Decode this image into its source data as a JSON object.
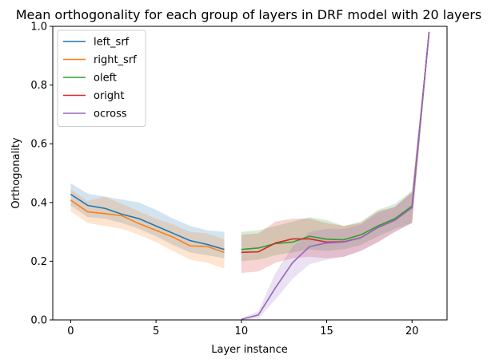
{
  "chart_data": {
    "type": "line",
    "title": "Mean orthogonality for each group of layers in DRF model with 20 layers",
    "xlabel": "Layer instance",
    "ylabel": "Orthogonality",
    "xlim": [
      -1.05,
      22.05
    ],
    "ylim": [
      0.0,
      1.0
    ],
    "xticks": [
      0,
      5,
      10,
      15,
      20
    ],
    "yticks": [
      0.0,
      0.2,
      0.4,
      0.6,
      0.8,
      1.0
    ],
    "xtick_labels": [
      "0",
      "5",
      "10",
      "15",
      "20"
    ],
    "ytick_labels": [
      "0.0",
      "0.2",
      "0.4",
      "0.6",
      "0.8",
      "1.0"
    ],
    "legend_position": "upper-left",
    "grid": false,
    "series": [
      {
        "name": "left_srf",
        "color": "#1f77b4",
        "x": [
          0,
          1,
          2,
          3,
          4,
          5,
          6,
          7,
          8,
          9
        ],
        "y": [
          0.428,
          0.39,
          0.38,
          0.36,
          0.345,
          0.32,
          0.295,
          0.27,
          0.257,
          0.24
        ],
        "lower": [
          0.39,
          0.35,
          0.345,
          0.33,
          0.31,
          0.285,
          0.255,
          0.23,
          0.22,
          0.21
        ],
        "upper": [
          0.465,
          0.43,
          0.42,
          0.41,
          0.4,
          0.375,
          0.345,
          0.32,
          0.305,
          0.3
        ]
      },
      {
        "name": "right_srf",
        "color": "#ff7f0e",
        "x": [
          0,
          1,
          2,
          3,
          4,
          5,
          6,
          7,
          8,
          9
        ],
        "y": [
          0.408,
          0.368,
          0.362,
          0.355,
          0.328,
          0.305,
          0.282,
          0.252,
          0.25,
          0.23
        ],
        "lower": [
          0.37,
          0.33,
          0.32,
          0.31,
          0.29,
          0.265,
          0.235,
          0.205,
          0.195,
          0.175
        ],
        "upper": [
          0.445,
          0.405,
          0.42,
          0.395,
          0.37,
          0.345,
          0.325,
          0.3,
          0.295,
          0.275
        ]
      },
      {
        "name": "oleft",
        "color": "#2ca02c",
        "x": [
          10,
          11,
          12,
          13,
          14,
          15,
          16,
          17,
          18,
          19,
          20,
          21
        ],
        "y": [
          0.24,
          0.245,
          0.26,
          0.265,
          0.285,
          0.275,
          0.273,
          0.29,
          0.32,
          0.345,
          0.388,
          0.98
        ],
        "lower": [
          0.2,
          0.205,
          0.22,
          0.23,
          0.24,
          0.235,
          0.24,
          0.255,
          0.285,
          0.31,
          0.33,
          0.96
        ],
        "upper": [
          0.3,
          0.305,
          0.32,
          0.335,
          0.35,
          0.34,
          0.32,
          0.335,
          0.375,
          0.395,
          0.44,
          0.99
        ]
      },
      {
        "name": "oright",
        "color": "#d62728",
        "x": [
          10,
          11,
          12,
          13,
          14,
          15,
          16,
          17,
          18,
          19,
          20,
          21
        ],
        "y": [
          0.23,
          0.232,
          0.262,
          0.276,
          0.276,
          0.265,
          0.266,
          0.28,
          0.315,
          0.34,
          0.383,
          0.98
        ],
        "lower": [
          0.16,
          0.165,
          0.195,
          0.21,
          0.215,
          0.21,
          0.215,
          0.235,
          0.265,
          0.3,
          0.33,
          0.96
        ],
        "upper": [
          0.29,
          0.295,
          0.335,
          0.345,
          0.345,
          0.33,
          0.32,
          0.33,
          0.37,
          0.385,
          0.435,
          0.99
        ]
      },
      {
        "name": "ocross",
        "color": "#9467bd",
        "x": [
          10,
          11,
          12,
          13,
          14,
          15,
          16,
          17,
          18,
          19,
          20,
          21
        ],
        "y": [
          0.002,
          0.017,
          0.11,
          0.195,
          0.25,
          0.262,
          0.265,
          0.28,
          0.315,
          0.34,
          0.383,
          0.98
        ],
        "lower": [
          0.0,
          0.005,
          0.07,
          0.14,
          0.19,
          0.205,
          0.215,
          0.235,
          0.265,
          0.3,
          0.33,
          0.96
        ],
        "upper": [
          0.005,
          0.03,
          0.16,
          0.25,
          0.3,
          0.31,
          0.31,
          0.325,
          0.365,
          0.385,
          0.435,
          0.99
        ]
      }
    ]
  }
}
